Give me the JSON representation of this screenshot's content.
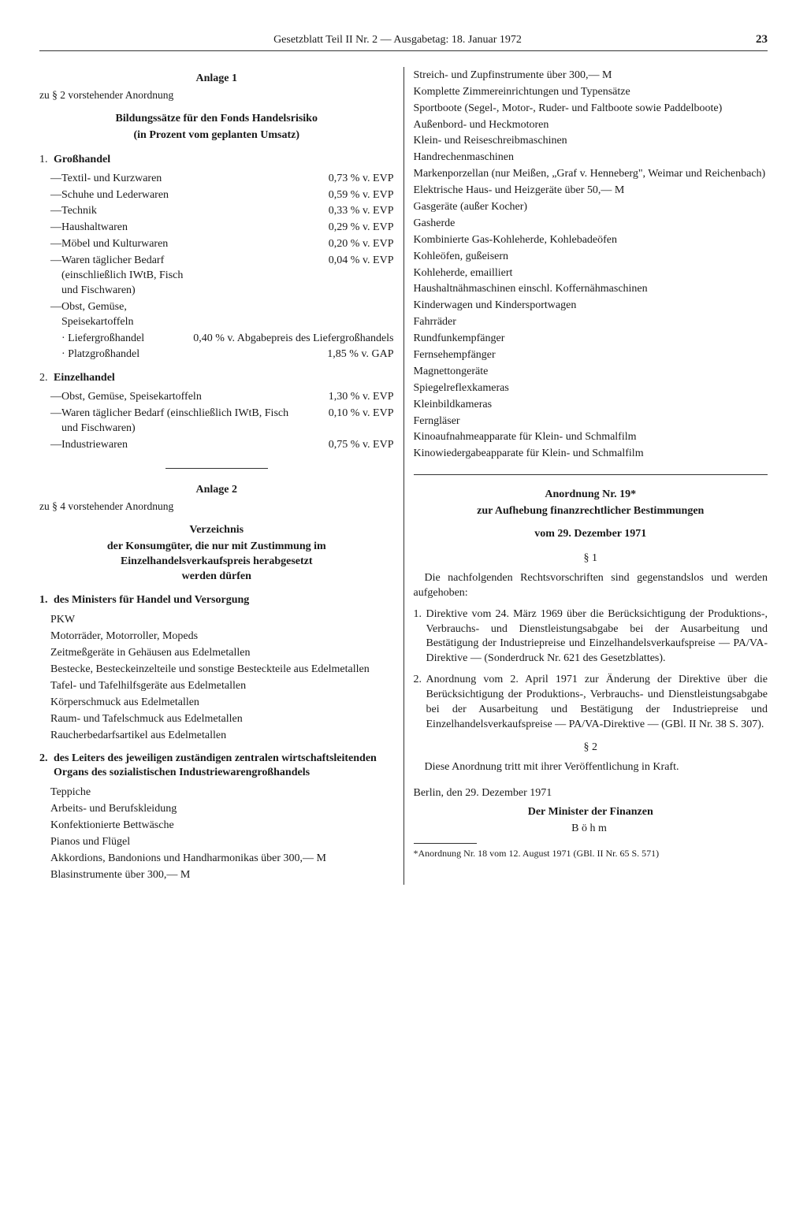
{
  "header": {
    "title": "Gesetzblatt Teil II Nr. 2 — Ausgabetag: 18. Januar 1972",
    "page": "23"
  },
  "anlage1": {
    "title": "Anlage 1",
    "sub": "zu § 2 vorstehender Anordnung",
    "block_title": "Bildungssätze für den Fonds Handelsrisiko",
    "block_sub": "(in Prozent vom geplanten Umsatz)",
    "sections": [
      {
        "num": "1.",
        "head": "Großhandel",
        "rows": [
          {
            "dash": "—",
            "label": "Textil- und Kurzwaren",
            "val": "0,73 % v. EVP"
          },
          {
            "dash": "—",
            "label": "Schuhe und Lederwaren",
            "val": "0,59 % v. EVP"
          },
          {
            "dash": "—",
            "label": "Technik",
            "val": "0,33 % v. EVP"
          },
          {
            "dash": "—",
            "label": "Haushaltwaren",
            "val": "0,29 % v. EVP"
          },
          {
            "dash": "—",
            "label": "Möbel und Kulturwaren",
            "val": "0,20 % v. EVP"
          },
          {
            "dash": "—",
            "label": "Waren täglicher Bedarf (einschließlich IWtB, Fisch und Fischwaren)",
            "val": "0,04 % v. EVP"
          },
          {
            "dash": "—",
            "label": "Obst, Gemüse, Speisekartoffeln",
            "val": ""
          }
        ],
        "subrows": [
          {
            "dot": "·",
            "label": "Liefergroßhandel",
            "val": "0,40 % v. Abgabepreis des Liefergroßhandels"
          },
          {
            "dot": "·",
            "label": "Platzgroßhandel",
            "val": "1,85 % v. GAP"
          }
        ]
      },
      {
        "num": "2.",
        "head": "Einzelhandel",
        "rows": [
          {
            "dash": "—",
            "label": "Obst, Gemüse, Speisekartoffeln",
            "val": "1,30 % v. EVP"
          },
          {
            "dash": "—",
            "label": "Waren täglicher Bedarf (einschließlich IWtB, Fisch und Fischwaren)",
            "val": "0,10 % v. EVP"
          },
          {
            "dash": "—",
            "label": "Industriewaren",
            "val": "0,75 % v. EVP"
          }
        ]
      }
    ]
  },
  "anlage2": {
    "title": "Anlage 2",
    "sub": "zu § 4 vorstehender Anordnung",
    "block_title": "Verzeichnis",
    "block_sub1": "der Konsumgüter, die nur mit Zustimmung im",
    "block_sub2": "Einzelhandelsverkaufspreis herabgesetzt",
    "block_sub3": "werden dürfen",
    "groups": [
      {
        "num": "1.",
        "head": "des Ministers für Handel und Versorgung",
        "items": [
          "PKW",
          "Motorräder, Motorroller, Mopeds",
          "Zeitmeßgeräte in Gehäusen aus Edelmetallen",
          "Bestecke, Besteckeinzelteile und sonstige Besteckteile aus Edelmetallen",
          "Tafel- und Tafelhilfsgeräte aus Edelmetallen",
          "Körperschmuck aus Edelmetallen",
          "Raum- und Tafelschmuck aus Edelmetallen",
          "Raucherbedarfsartikel aus Edelmetallen"
        ]
      },
      {
        "num": "2.",
        "head": "des Leiters des jeweiligen zuständigen zentralen wirtschaftsleitenden Organs des sozialistischen Industriewarengroßhandels",
        "items": [
          "Teppiche",
          "Arbeits- und Berufskleidung",
          "Konfektionierte Bettwäsche",
          "Pianos und Flügel",
          "Akkordions, Bandonions und Handharmonikas über 300,— M",
          "Blasinstrumente über 300,— M"
        ]
      }
    ]
  },
  "right_continued": [
    "Streich- und Zupfinstrumente über 300,— M",
    "Komplette Zimmereinrichtungen und Typensätze",
    "Sportboote (Segel-, Motor-, Ruder- und Faltboote sowie Paddelboote)",
    "Außenbord- und Heckmotoren",
    "Klein- und Reiseschreibmaschinen",
    "Handrechenmaschinen",
    "Markenporzellan (nur Meißen, „Graf v. Henneberg\", Weimar und Reichenbach)",
    "Elektrische Haus- und Heizgeräte über 50,— M",
    "Gasgeräte (außer Kocher)",
    "Gasherde",
    "Kombinierte Gas-Kohleherde, Kohlebadeöfen",
    "Kohleöfen, gußeisern",
    "Kohleherde, emailliert",
    "Haushaltnähmaschinen einschl. Koffernähmaschinen",
    "Kinderwagen und Kindersportwagen",
    "Fahrräder",
    "Rundfunkempfänger",
    "Fernsehempfänger",
    "Magnettongeräte",
    "Spiegelreflexkameras",
    "Kleinbildkameras",
    "Ferngläser",
    "Kinoaufnahmeapparate für Klein- und Schmalfilm",
    "Kinowiedergabeapparate für Klein- und Schmalfilm"
  ],
  "anordnung": {
    "title": "Anordnung Nr. 19*",
    "sub": "zur Aufhebung finanzrechtlicher Bestimmungen",
    "date": "vom 29. Dezember 1971",
    "p1_head": "§ 1",
    "p1_intro": "Die nachfolgenden Rechtsvorschriften sind gegenstandslos und werden aufgehoben:",
    "p1_items": [
      {
        "n": "1.",
        "t": "Direktive vom 24. März 1969 über die Berücksichtigung der Produktions-, Verbrauchs- und Dienstleistungsabgabe bei der Ausarbeitung und Bestätigung der Industriepreise und Einzelhandelsverkaufspreise — PA/VA-Direktive — (Sonderdruck Nr. 621 des Gesetzblattes)."
      },
      {
        "n": "2.",
        "t": "Anordnung vom 2. April 1971 zur Änderung der Direktive über die Berücksichtigung der Produktions-, Verbrauchs- und Dienstleistungsabgabe bei der Ausarbeitung und Bestätigung der Industriepreise und Einzelhandelsverkaufspreise — PA/VA-Direktive — (GBl. II Nr. 38 S. 307)."
      }
    ],
    "p2_head": "§ 2",
    "p2_text": "Diese Anordnung tritt mit ihrer Veröffentlichung in Kraft.",
    "place_date": "Berlin, den 29. Dezember 1971",
    "signer_title": "Der Minister der Finanzen",
    "signer_name": "Böhm",
    "footnote": "*Anordnung Nr. 18 vom 12. August 1971 (GBl. II Nr. 65 S. 571)"
  }
}
